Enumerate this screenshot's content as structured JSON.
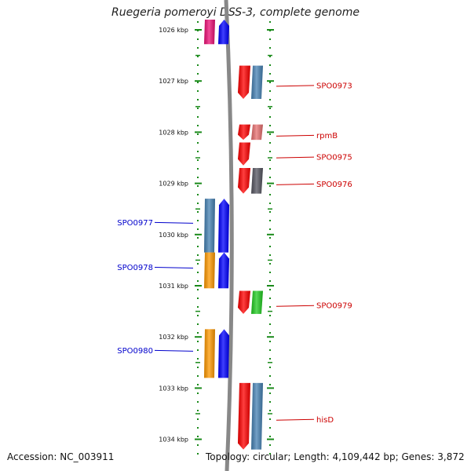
{
  "header": {
    "title": "Ruegeria pomeroyi DSS-3, complete genome"
  },
  "footer": {
    "accession": "Accession: NC_003911",
    "summary": "Topology: circular; Length: 4,109,442 bp; Genes: 3,872"
  },
  "map_data": {
    "type": "genome-map",
    "view_start_kbp": 1025.8,
    "view_end_kbp": 1034.4,
    "ticks": [
      {
        "kbp": 1026,
        "label": "1026 kbp"
      },
      {
        "kbp": 1027,
        "label": "1027 kbp"
      },
      {
        "kbp": 1028,
        "label": "1028 kbp"
      },
      {
        "kbp": 1029,
        "label": "1029 kbp"
      },
      {
        "kbp": 1030,
        "label": "1030 kbp"
      },
      {
        "kbp": 1031,
        "label": "1031 kbp"
      },
      {
        "kbp": 1032,
        "label": "1032 kbp"
      },
      {
        "kbp": 1033,
        "label": "1033 kbp"
      },
      {
        "kbp": 1034,
        "label": "1034 kbp"
      }
    ],
    "colors": {
      "forward_label": "#cc0000",
      "reverse_label": "#0000cc",
      "backbone": "#888888",
      "tick": "#1a8a1a"
    },
    "features": [
      {
        "name": "",
        "strand": "reverse",
        "start_kbp": 1025.8,
        "end_kbp": 1026.28,
        "gene_color": "#0000ff",
        "product_color": "#ee1177"
      },
      {
        "name": "SPO0973",
        "strand": "forward",
        "start_kbp": 1026.7,
        "end_kbp": 1027.35,
        "gene_color": "#ff0000",
        "product_color": "#4682b4"
      },
      {
        "name": "rpmB",
        "strand": "forward",
        "start_kbp": 1027.85,
        "end_kbp": 1028.15,
        "gene_color": "#ff0000",
        "product_color": "#e87070"
      },
      {
        "name": "SPO0975",
        "strand": "forward",
        "start_kbp": 1028.2,
        "end_kbp": 1028.65,
        "gene_color": "#ff0000",
        "product_color": ""
      },
      {
        "name": "SPO0976",
        "strand": "forward",
        "start_kbp": 1028.7,
        "end_kbp": 1029.2,
        "gene_color": "#ff0000",
        "product_color": "#555560"
      },
      {
        "name": "SPO0977",
        "strand": "reverse",
        "start_kbp": 1029.3,
        "end_kbp": 1030.35,
        "gene_color": "#0000ff",
        "product_color": "#4682b4"
      },
      {
        "name": "SPO0978",
        "strand": "reverse",
        "start_kbp": 1030.35,
        "end_kbp": 1031.05,
        "gene_color": "#0000ff",
        "product_color": "#ff9900"
      },
      {
        "name": "SPO0979",
        "strand": "forward",
        "start_kbp": 1031.1,
        "end_kbp": 1031.55,
        "gene_color": "#ff0000",
        "product_color": "#22cc22"
      },
      {
        "name": "SPO0980",
        "strand": "reverse",
        "start_kbp": 1031.85,
        "end_kbp": 1032.8,
        "gene_color": "#0000ff",
        "product_color": "#ff9900"
      },
      {
        "name": "hisD",
        "strand": "forward",
        "start_kbp": 1032.9,
        "end_kbp": 1034.2,
        "gene_color": "#ff0000",
        "product_color": "#4682b4"
      }
    ]
  }
}
